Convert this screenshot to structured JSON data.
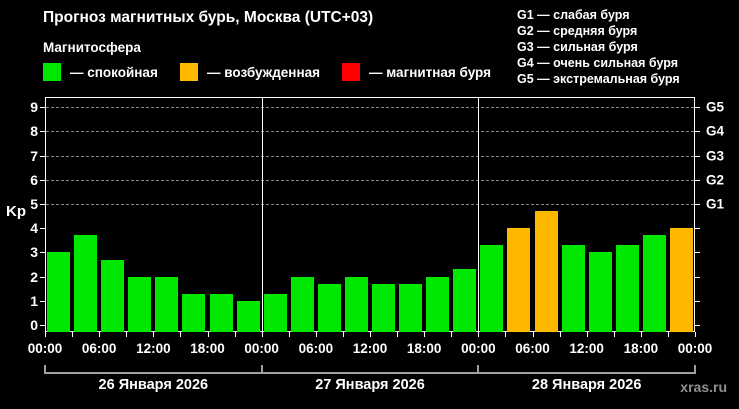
{
  "header": {
    "title": "Прогноз магнитных бурь, Москва (UTC+03)",
    "subtitle": "Магнитосфера",
    "watermark": "xras.ru"
  },
  "colors": {
    "background": "#000000",
    "text": "#ffffff",
    "quiet": "#00e800",
    "excited": "#ffb800",
    "storm": "#ff0000",
    "grid": "#858585",
    "axis": "#ffffff",
    "date_band": "#9e9e9e",
    "watermark": "#8f8f8f"
  },
  "magnetosphere_legend": [
    {
      "label": "— спокойная",
      "state": "quiet"
    },
    {
      "label": "— возбужденная",
      "state": "excited"
    },
    {
      "label": "— магнитная буря",
      "state": "storm"
    }
  ],
  "g_scale_legend": [
    "G1 — слабая буря",
    "G2 — средняя буря",
    "G3 — сильная буря",
    "G4 — очень сильная буря",
    "G5 — экстремальная буря"
  ],
  "chart_data": {
    "type": "bar",
    "title": "Прогноз магнитных бурь, Москва (UTC+03)",
    "ylabel": "Kp",
    "ylim": [
      0,
      9
    ],
    "y_ticks": [
      0,
      1,
      2,
      3,
      4,
      5,
      6,
      7,
      8,
      9
    ],
    "gridlines_kp": [
      5,
      6,
      7,
      8,
      9
    ],
    "right_axis": [
      {
        "kp": 5,
        "label": "G1"
      },
      {
        "kp": 6,
        "label": "G2"
      },
      {
        "kp": 7,
        "label": "G3"
      },
      {
        "kp": 8,
        "label": "G4"
      },
      {
        "kp": 9,
        "label": "G5"
      }
    ],
    "interval_hours": 3,
    "time_tick_cycle": [
      "00:00",
      "06:00",
      "12:00",
      "18:00"
    ],
    "legend_position": "top",
    "grid": "dashed horizontal at storm levels only",
    "days": [
      {
        "date": "26 Января 2026",
        "times": [
          "00:00",
          "03:00",
          "06:00",
          "09:00",
          "12:00",
          "15:00",
          "18:00",
          "21:00"
        ],
        "values": [
          3.0,
          3.7,
          2.7,
          2.0,
          2.0,
          1.3,
          1.3,
          1.0
        ],
        "states": [
          "quiet",
          "quiet",
          "quiet",
          "quiet",
          "quiet",
          "quiet",
          "quiet",
          "quiet"
        ]
      },
      {
        "date": "27 Января 2026",
        "times": [
          "00:00",
          "03:00",
          "06:00",
          "09:00",
          "12:00",
          "15:00",
          "18:00",
          "21:00"
        ],
        "values": [
          1.3,
          2.0,
          1.7,
          2.0,
          1.7,
          1.7,
          2.0,
          2.3
        ],
        "states": [
          "quiet",
          "quiet",
          "quiet",
          "quiet",
          "quiet",
          "quiet",
          "quiet",
          "quiet"
        ]
      },
      {
        "date": "28 Января 2026",
        "times": [
          "00:00",
          "03:00",
          "06:00",
          "09:00",
          "12:00",
          "15:00",
          "18:00",
          "21:00"
        ],
        "values": [
          3.3,
          4.0,
          4.7,
          3.3,
          3.0,
          3.3,
          3.7,
          4.0
        ],
        "states": [
          "quiet",
          "excited",
          "excited",
          "quiet",
          "quiet",
          "quiet",
          "quiet",
          "excited"
        ]
      }
    ]
  }
}
